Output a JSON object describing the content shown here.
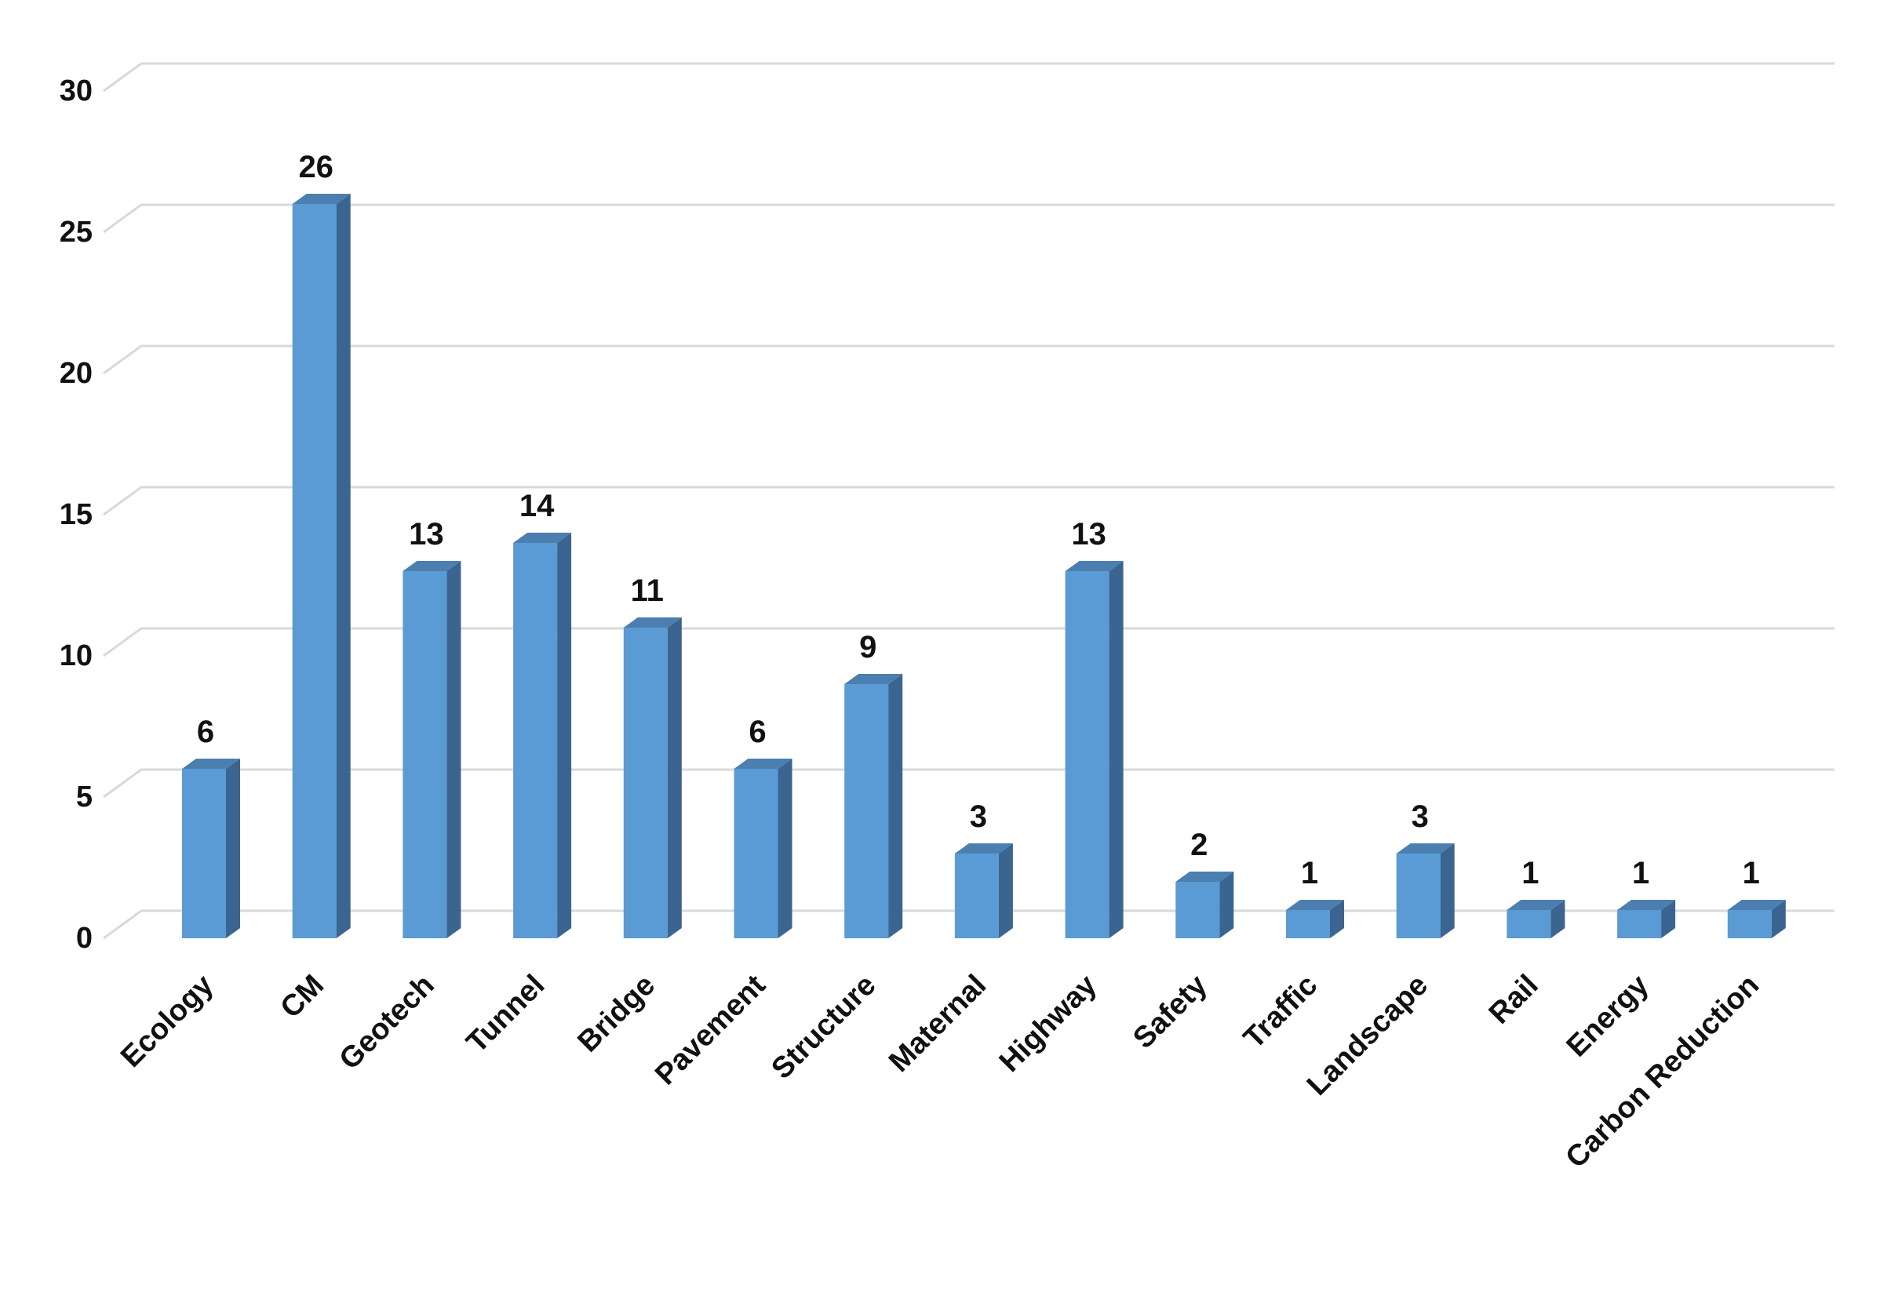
{
  "chart_data": {
    "type": "bar",
    "style": "3d-column",
    "categories": [
      "Ecology",
      "CM",
      "Geotech",
      "Tunnel",
      "Bridge",
      "Pavement",
      "Structure",
      "Maternal",
      "Highway",
      "Safety",
      "Traffic",
      "Landscape",
      "Rail",
      "Energy",
      "Carbon Reduction"
    ],
    "values": [
      6,
      26,
      13,
      14,
      11,
      6,
      9,
      3,
      13,
      2,
      1,
      3,
      1,
      1,
      1
    ],
    "title": "",
    "xlabel": "",
    "ylabel": "",
    "ylim": [
      0,
      30
    ],
    "yticks": [
      "0",
      "5",
      "10",
      "15",
      "20",
      "25",
      "30"
    ],
    "grid": true,
    "data_labels": true,
    "legend": "none",
    "colors": {
      "bar_front": "#5b9bd5",
      "bar_side": "#3a6590",
      "bar_top": "#4a7fb0",
      "grid": "#d9d9d9"
    }
  }
}
